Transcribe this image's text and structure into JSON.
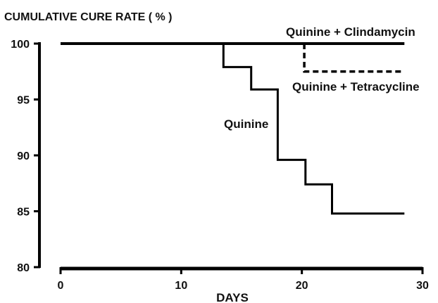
{
  "chart_data": {
    "type": "line",
    "subtype": "step",
    "title": "",
    "ylabel": "CUMULATIVE CURE RATE ( % )",
    "xlabel": "DAYS",
    "xlim": [
      0,
      30
    ],
    "ylim": [
      80,
      100
    ],
    "xticks": [
      "0",
      "10",
      "20",
      "30"
    ],
    "yticks": [
      "80",
      "85",
      "90",
      "95",
      "100"
    ],
    "grid": false,
    "legend": "none",
    "series": [
      {
        "name": "Quinine + Clindamycin",
        "style": "solid",
        "points": [
          [
            0,
            100
          ],
          [
            28.5,
            100
          ]
        ]
      },
      {
        "name": "Quinine + Tetracycline",
        "style": "dashed",
        "points": [
          [
            20.2,
            100
          ],
          [
            20.2,
            97.5
          ],
          [
            28.5,
            97.5
          ]
        ]
      },
      {
        "name": "Quinine",
        "style": "solid",
        "points": [
          [
            13.5,
            100
          ],
          [
            13.5,
            97.9
          ],
          [
            15.8,
            97.9
          ],
          [
            15.8,
            95.9
          ],
          [
            18,
            95.9
          ],
          [
            18,
            89.6
          ],
          [
            20.3,
            89.6
          ],
          [
            20.3,
            87.4
          ],
          [
            22.5,
            87.4
          ],
          [
            22.5,
            84.8
          ],
          [
            28.5,
            84.8
          ]
        ]
      }
    ],
    "colors": {
      "line": "#000000",
      "text": "#111111"
    }
  }
}
